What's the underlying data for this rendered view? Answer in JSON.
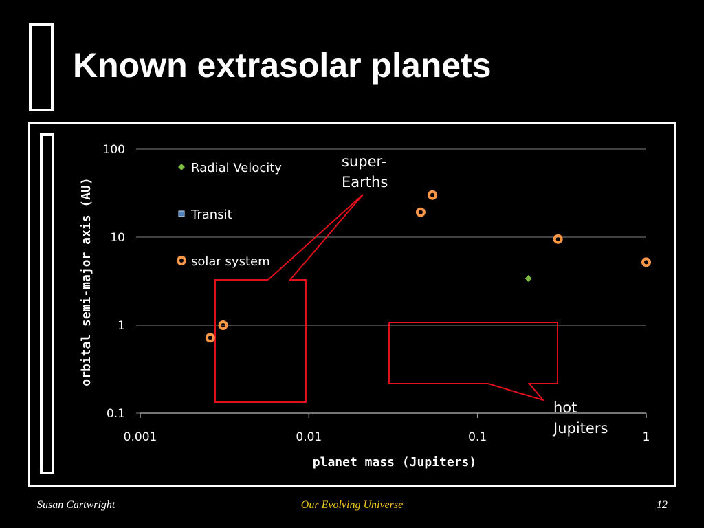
{
  "slide": {
    "title": "Known extrasolar planets"
  },
  "footer": {
    "author": "Susan Cartwright",
    "course": "Our Evolving Universe",
    "page": "12"
  },
  "colors": {
    "background": "#000000",
    "text": "#ffffff",
    "footer_course": "#f3c820",
    "radial_velocity": "#7dbb42",
    "transit": "#4f81bd",
    "solar_system": "#f79646",
    "callout": "#e0101a"
  },
  "chart_data": {
    "type": "scatter",
    "xlabel": "planet mass (Jupiters)",
    "ylabel": "orbital semi-major axis (AU)",
    "x_scale": "log",
    "y_scale": "log",
    "xlim": [
      0.001,
      1
    ],
    "ylim": [
      0.1,
      100
    ],
    "x_ticks": [
      "0.001",
      "0.01",
      "0.1",
      "1"
    ],
    "y_ticks": [
      "0.1",
      "1",
      "10",
      "100"
    ],
    "grid": "horizontal",
    "legend_position": "top-left",
    "series": [
      {
        "name": "Radial Velocity",
        "marker": "diamond",
        "color": "#7dbb42",
        "points": [
          {
            "x": 0.2,
            "y": 3.4
          }
        ]
      },
      {
        "name": "Transit",
        "marker": "square",
        "color": "#4f81bd",
        "points": []
      },
      {
        "name": "solar system",
        "marker": "ring",
        "color": "#f79646",
        "points": [
          {
            "x": 0.0026,
            "y": 0.72
          },
          {
            "x": 0.0031,
            "y": 1.0
          },
          {
            "x": 0.046,
            "y": 19.2
          },
          {
            "x": 0.054,
            "y": 30.1
          },
          {
            "x": 0.3,
            "y": 9.5
          },
          {
            "x": 1.0,
            "y": 5.2
          }
        ]
      }
    ],
    "annotations": [
      {
        "id": "super-earths",
        "lines": [
          "super-",
          "Earths"
        ]
      },
      {
        "id": "hot-jupiters",
        "lines": [
          "hot",
          "Jupiters"
        ]
      }
    ]
  }
}
